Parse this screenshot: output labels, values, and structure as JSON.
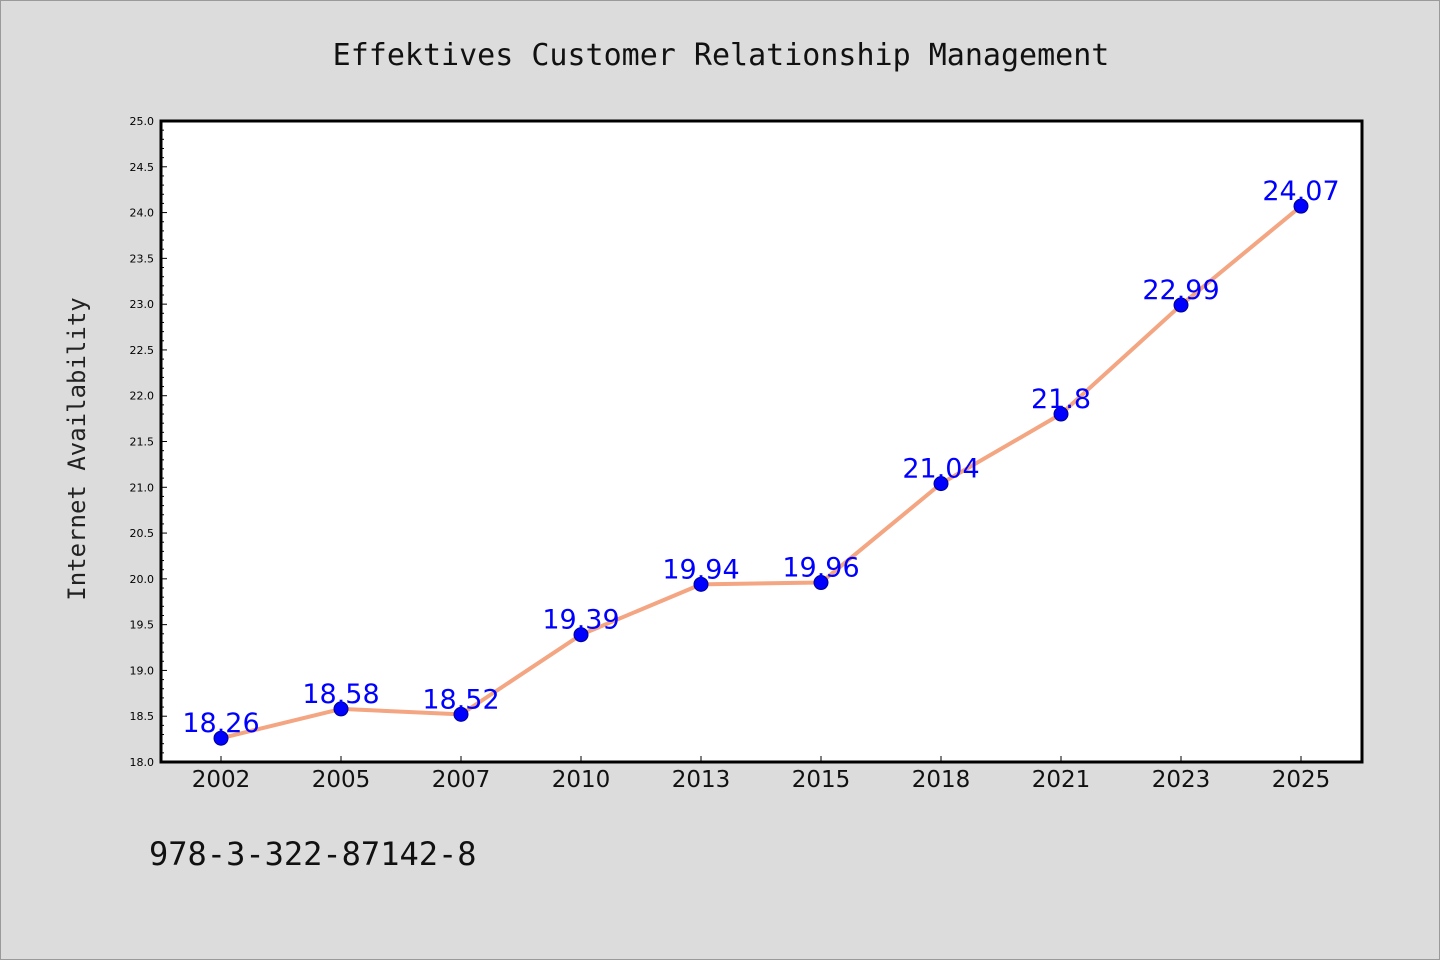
{
  "chart_data": {
    "type": "line",
    "title": "Effektives Customer Relationship Management",
    "xlabel": "",
    "ylabel": "Internet Availability",
    "categories": [
      "2002",
      "2005",
      "2007",
      "2010",
      "2013",
      "2015",
      "2018",
      "2021",
      "2023",
      "2025"
    ],
    "series": [
      {
        "values": [
          18.26,
          18.58,
          18.52,
          19.39,
          19.94,
          19.96,
          21.04,
          21.8,
          22.99,
          24.07
        ],
        "data_labels": [
          "18.26",
          "18.58",
          "18.52",
          "19.39",
          "19.94",
          "19.96",
          "21.04",
          "21.8",
          "22.99",
          "24.07"
        ],
        "line_color": "#f4a582",
        "marker_color": "#0000ff",
        "label_color": "#0000ff"
      }
    ],
    "ylim": [
      18.0,
      25.0
    ],
    "y_ticks": [
      "18.0",
      "18.5",
      "19.0",
      "19.5",
      "20.0",
      "20.5",
      "21.0",
      "21.5",
      "22.0",
      "22.5",
      "23.0",
      "23.5",
      "24.0",
      "24.5",
      "25.0"
    ],
    "grid": false,
    "legend": "none",
    "plot_background": "#ffffff",
    "figure_background": "#dcdcdc"
  },
  "footer": {
    "isbn": "978-3-322-87142-8"
  }
}
